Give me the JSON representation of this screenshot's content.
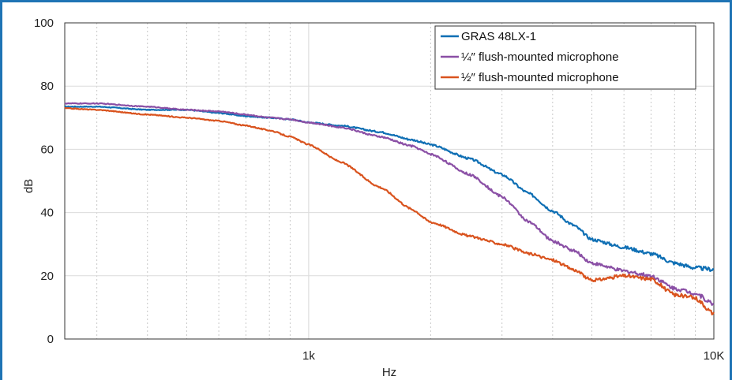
{
  "chart_data": {
    "type": "line",
    "xlabel": "Hz",
    "ylabel": "dB",
    "xscale": "log",
    "xlim": [
      250,
      10000
    ],
    "ylim": [
      0,
      100
    ],
    "yticks": [
      0,
      20,
      40,
      60,
      80,
      100
    ],
    "ytick_labels": [
      "0",
      "20",
      "40",
      "60",
      "80",
      "100"
    ],
    "xticks": [
      1000,
      10000
    ],
    "xtick_labels": [
      "1k",
      "10K"
    ],
    "grid": true,
    "legend_position": "top-right",
    "series": [
      {
        "name": "GRAS 48LX-1",
        "color": "#0f6fb4",
        "x": [
          250,
          300,
          400,
          500,
          600,
          700,
          800,
          900,
          1000,
          1200,
          1500,
          1800,
          2000,
          2500,
          3000,
          3500,
          4000,
          4500,
          5000,
          6000,
          7000,
          8000,
          9000,
          10000
        ],
        "y": [
          73.5,
          73.5,
          72.5,
          72.5,
          71.5,
          70.5,
          70,
          69.5,
          68.5,
          67.5,
          65.5,
          63,
          61.5,
          57,
          52,
          46,
          40.5,
          36,
          31.5,
          29,
          27,
          24,
          22.5,
          22
        ]
      },
      {
        "name": "¼″ flush-mounted microphone",
        "color": "#8a4fa5",
        "x": [
          250,
          300,
          400,
          500,
          600,
          700,
          800,
          900,
          1000,
          1200,
          1500,
          1800,
          2000,
          2500,
          3000,
          3500,
          4000,
          4500,
          5000,
          6000,
          7000,
          8000,
          9000,
          10000
        ],
        "y": [
          74.5,
          74.5,
          73.5,
          72.5,
          72,
          71,
          70,
          69.5,
          68.5,
          67,
          64,
          61,
          58.5,
          52,
          45,
          37,
          31,
          28,
          24,
          21.5,
          20,
          16,
          14.5,
          11
        ]
      },
      {
        "name": "½″ flush-mounted microphone",
        "color": "#d9531e",
        "x": [
          250,
          300,
          400,
          500,
          600,
          700,
          800,
          900,
          1000,
          1200,
          1500,
          1800,
          2000,
          2500,
          3000,
          3500,
          4000,
          4500,
          5000,
          6000,
          7000,
          8000,
          9000,
          10000
        ],
        "y": [
          73,
          72.5,
          71,
          70,
          69,
          67.5,
          66,
          64,
          61.5,
          56,
          48,
          41,
          37,
          32.5,
          30,
          27,
          25,
          22,
          18.5,
          20,
          19,
          14,
          13,
          8
        ]
      }
    ]
  }
}
